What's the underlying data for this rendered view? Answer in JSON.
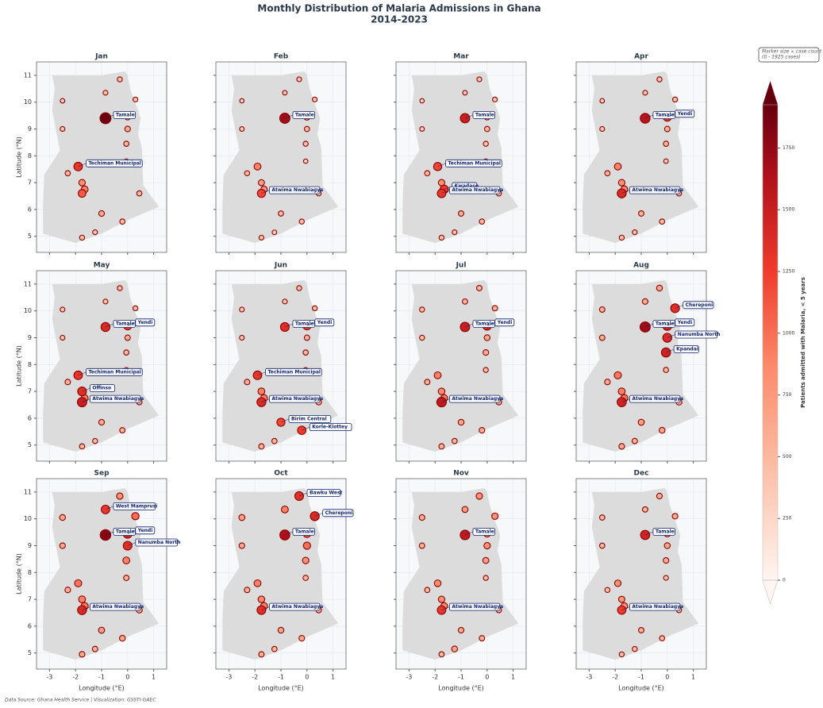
{
  "title": "Monthly Distribution of Malaria Admissions in Ghana",
  "subtitle": "2014-2023",
  "xlabel": "Longitude (°E)",
  "ylabel": "Latitude (°N)",
  "size_note": [
    "Marker size ∝ case count",
    "(0 - 1925 cases)"
  ],
  "source": "Data Source: Ghana Health Service | Visualization: GSSTI-GAEC",
  "colorbar": {
    "label": "Patients admitted with Malaria, < 5 years",
    "lim": [
      0,
      1925
    ],
    "ticks": [
      0,
      250,
      500,
      750,
      1000,
      1250,
      1500,
      1750
    ]
  },
  "chart_data": [
    {
      "type": "scatter",
      "title": "Jan",
      "xlim": [
        -3.5,
        1.5
      ],
      "ylim": [
        4.4,
        11.5
      ],
      "xticks": [
        -3,
        -2,
        -1,
        0,
        1
      ],
      "yticks": [
        5,
        6,
        7,
        8,
        9,
        10,
        11
      ],
      "x": [
        -0.85,
        0.0,
        -1.9,
        -1.75,
        -1.65,
        -1.75,
        -1.0,
        -0.2,
        0.3,
        0.0,
        -0.05,
        -0.85,
        -0.3,
        -2.5,
        -2.5,
        0.45,
        -1.75,
        -1.25,
        -2.3,
        -0.05
      ],
      "y": [
        9.4,
        9.45,
        7.6,
        6.6,
        6.75,
        7.0,
        5.85,
        5.55,
        10.1,
        9.0,
        8.45,
        10.35,
        10.85,
        10.05,
        9.0,
        6.6,
        4.95,
        5.15,
        7.35,
        7.8
      ],
      "values": [
        1900,
        700,
        1300,
        1100,
        900,
        800,
        600,
        500,
        400,
        600,
        500,
        400,
        450,
        350,
        400,
        500,
        450,
        400,
        500,
        350
      ],
      "annotations": [
        {
          "text": "Tamale",
          "x": -0.85,
          "y": 9.4
        },
        {
          "text": "Techiman Municipal",
          "x": -1.9,
          "y": 7.6
        }
      ]
    },
    {
      "type": "scatter",
      "title": "Feb",
      "xlim": [
        -3.5,
        1.5
      ],
      "ylim": [
        4.4,
        11.5
      ],
      "xticks": [
        -3,
        -2,
        -1,
        0,
        1
      ],
      "yticks": [
        5,
        6,
        7,
        8,
        9,
        10,
        11
      ],
      "x": [
        -0.85,
        0.0,
        -1.9,
        -1.75,
        -1.65,
        -1.75,
        -1.0,
        -0.2,
        0.3,
        0.0,
        -0.05,
        -0.85,
        -0.3,
        -2.5,
        -2.5,
        0.45,
        -1.75,
        -1.25,
        -2.3,
        -0.05
      ],
      "y": [
        9.4,
        9.45,
        7.6,
        6.6,
        6.75,
        7.0,
        5.85,
        5.55,
        10.1,
        9.0,
        8.45,
        10.35,
        10.85,
        10.05,
        9.0,
        6.6,
        4.95,
        5.15,
        7.35,
        7.8
      ],
      "values": [
        1700,
        800,
        900,
        1200,
        800,
        700,
        500,
        450,
        400,
        500,
        450,
        350,
        400,
        300,
        350,
        450,
        400,
        350,
        450,
        300
      ],
      "annotations": [
        {
          "text": "Tamale",
          "x": -0.85,
          "y": 9.4
        },
        {
          "text": "Atwima Nwabiagya",
          "x": -1.75,
          "y": 6.6
        }
      ]
    },
    {
      "type": "scatter",
      "title": "Mar",
      "xlim": [
        -3.5,
        1.5
      ],
      "ylim": [
        4.4,
        11.5
      ],
      "xticks": [
        -3,
        -2,
        -1,
        0,
        1
      ],
      "yticks": [
        5,
        6,
        7,
        8,
        9,
        10,
        11
      ],
      "x": [
        -0.85,
        0.0,
        -1.9,
        -1.75,
        -1.65,
        -1.75,
        -1.0,
        -0.2,
        0.3,
        0.0,
        -0.05,
        -0.85,
        -0.3,
        -2.5,
        -2.5,
        0.45,
        -1.75,
        -1.25,
        -2.3,
        -0.05
      ],
      "y": [
        9.4,
        9.45,
        7.6,
        6.6,
        6.75,
        7.0,
        5.85,
        5.55,
        10.1,
        9.0,
        8.45,
        10.35,
        10.85,
        10.05,
        9.0,
        6.6,
        4.95,
        5.15,
        7.35,
        7.8
      ],
      "values": [
        1500,
        700,
        1200,
        1300,
        1250,
        800,
        550,
        500,
        400,
        500,
        450,
        350,
        400,
        300,
        350,
        500,
        450,
        400,
        500,
        350
      ],
      "annotations": [
        {
          "text": "Tamale",
          "x": -0.85,
          "y": 9.4
        },
        {
          "text": "Techiman Municipal",
          "x": -1.9,
          "y": 7.6
        },
        {
          "text": "Kwadaso",
          "x": -1.65,
          "y": 6.75
        },
        {
          "text": "Atwima Nwabiagya",
          "x": -1.75,
          "y": 6.6
        }
      ]
    },
    {
      "type": "scatter",
      "title": "Apr",
      "xlim": [
        -3.5,
        1.5
      ],
      "ylim": [
        4.4,
        11.5
      ],
      "xticks": [
        -3,
        -2,
        -1,
        0,
        1
      ],
      "yticks": [
        5,
        6,
        7,
        8,
        9,
        10,
        11
      ],
      "x": [
        -0.85,
        0.0,
        -1.9,
        -1.75,
        -1.65,
        -1.75,
        -1.0,
        -0.2,
        0.3,
        0.0,
        -0.05,
        -0.85,
        -0.3,
        -2.5,
        -2.5,
        0.45,
        -1.75,
        -1.25,
        -2.3,
        -0.05
      ],
      "y": [
        9.4,
        9.45,
        7.6,
        6.6,
        6.75,
        7.0,
        5.85,
        5.55,
        10.1,
        9.0,
        8.45,
        10.35,
        10.85,
        10.05,
        9.0,
        6.6,
        4.95,
        5.15,
        7.35,
        7.8
      ],
      "values": [
        1600,
        1300,
        900,
        1400,
        900,
        800,
        550,
        500,
        450,
        550,
        500,
        400,
        450,
        350,
        400,
        500,
        450,
        400,
        500,
        350
      ],
      "annotations": [
        {
          "text": "Tamale",
          "x": -0.85,
          "y": 9.4
        },
        {
          "text": "Yendi",
          "x": 0.0,
          "y": 9.45
        },
        {
          "text": "Atwima Nwabiagya",
          "x": -1.75,
          "y": 6.6
        }
      ]
    },
    {
      "type": "scatter",
      "title": "May",
      "xlim": [
        -3.5,
        1.5
      ],
      "ylim": [
        4.4,
        11.5
      ],
      "xticks": [
        -3,
        -2,
        -1,
        0,
        1
      ],
      "yticks": [
        5,
        6,
        7,
        8,
        9,
        10,
        11
      ],
      "x": [
        -0.85,
        0.0,
        -1.9,
        -1.75,
        -1.65,
        -1.75,
        -1.0,
        -0.2,
        0.3,
        0.0,
        -0.05,
        -0.85,
        -0.3,
        -2.5,
        -2.5,
        0.45,
        -1.75,
        -1.25,
        -2.3,
        -0.05
      ],
      "y": [
        9.4,
        9.45,
        7.6,
        6.6,
        6.75,
        7.0,
        5.85,
        5.55,
        10.1,
        9.0,
        8.45,
        10.35,
        10.85,
        10.05,
        9.0,
        6.6,
        4.95,
        5.15,
        7.35,
        7.8
      ],
      "values": [
        1400,
        1250,
        1300,
        1500,
        900,
        1350,
        600,
        550,
        450,
        550,
        500,
        400,
        450,
        400,
        400,
        550,
        500,
        450,
        550,
        400
      ],
      "annotations": [
        {
          "text": "Tamale",
          "x": -0.85,
          "y": 9.4
        },
        {
          "text": "Yendi",
          "x": 0.0,
          "y": 9.45
        },
        {
          "text": "Techiman Municipal",
          "x": -1.9,
          "y": 7.6
        },
        {
          "text": "Offinso",
          "x": -1.75,
          "y": 7.0
        },
        {
          "text": "Atwima Nwabiagya",
          "x": -1.75,
          "y": 6.6
        }
      ]
    },
    {
      "type": "scatter",
      "title": "Jun",
      "xlim": [
        -3.5,
        1.5
      ],
      "ylim": [
        4.4,
        11.5
      ],
      "xticks": [
        -3,
        -2,
        -1,
        0,
        1
      ],
      "yticks": [
        5,
        6,
        7,
        8,
        9,
        10,
        11
      ],
      "x": [
        -0.85,
        0.0,
        -1.9,
        -1.75,
        -1.65,
        -1.75,
        -1.0,
        -0.2,
        0.3,
        0.0,
        -0.05,
        -0.85,
        -0.3,
        -2.5,
        -2.5,
        0.45,
        -1.75,
        -1.25,
        -2.3,
        -0.05
      ],
      "y": [
        9.4,
        9.45,
        7.6,
        6.6,
        6.75,
        7.0,
        5.85,
        5.55,
        10.1,
        9.0,
        8.45,
        10.35,
        10.85,
        10.05,
        9.0,
        6.6,
        4.95,
        5.15,
        7.35,
        7.8
      ],
      "values": [
        1350,
        1250,
        1300,
        1400,
        900,
        900,
        1200,
        1250,
        450,
        550,
        500,
        400,
        450,
        400,
        400,
        600,
        550,
        500,
        550,
        400
      ],
      "annotations": [
        {
          "text": "Tamale",
          "x": -0.85,
          "y": 9.4
        },
        {
          "text": "Yendi",
          "x": 0.0,
          "y": 9.45
        },
        {
          "text": "Techiman Municipal",
          "x": -1.9,
          "y": 7.6
        },
        {
          "text": "Atwima Nwabiagya",
          "x": -1.75,
          "y": 6.6
        },
        {
          "text": "Birim Central",
          "x": -1.0,
          "y": 5.85
        },
        {
          "text": "Korle-Klottey",
          "x": -0.2,
          "y": 5.55
        }
      ]
    },
    {
      "type": "scatter",
      "title": "Jul",
      "xlim": [
        -3.5,
        1.5
      ],
      "ylim": [
        4.4,
        11.5
      ],
      "xticks": [
        -3,
        -2,
        -1,
        0,
        1
      ],
      "yticks": [
        5,
        6,
        7,
        8,
        9,
        10,
        11
      ],
      "x": [
        -0.85,
        0.0,
        -1.9,
        -1.75,
        -1.65,
        -1.75,
        -1.0,
        -0.2,
        0.3,
        0.0,
        -0.05,
        -0.85,
        -0.3,
        -2.5,
        -2.5,
        0.45,
        -1.75,
        -1.25,
        -2.3,
        -0.05
      ],
      "y": [
        9.4,
        9.45,
        7.6,
        6.6,
        6.75,
        7.0,
        5.85,
        5.55,
        10.1,
        9.0,
        8.45,
        10.35,
        10.85,
        10.05,
        9.0,
        6.6,
        4.95,
        5.15,
        7.35,
        7.8
      ],
      "values": [
        1500,
        1400,
        900,
        1550,
        900,
        850,
        650,
        600,
        550,
        650,
        600,
        500,
        550,
        450,
        450,
        600,
        550,
        500,
        550,
        450
      ],
      "annotations": [
        {
          "text": "Tamale",
          "x": -0.85,
          "y": 9.4
        },
        {
          "text": "Yendi",
          "x": 0.0,
          "y": 9.45
        },
        {
          "text": "Atwima Nwabiagya",
          "x": -1.75,
          "y": 6.6
        }
      ]
    },
    {
      "type": "scatter",
      "title": "Aug",
      "xlim": [
        -3.5,
        1.5
      ],
      "ylim": [
        4.4,
        11.5
      ],
      "xticks": [
        -3,
        -2,
        -1,
        0,
        1
      ],
      "yticks": [
        5,
        6,
        7,
        8,
        9,
        10,
        11
      ],
      "x": [
        -0.85,
        0.0,
        -1.9,
        -1.75,
        -1.65,
        -1.75,
        -1.0,
        -0.2,
        0.3,
        0.0,
        -0.05,
        -0.85,
        -0.3,
        -2.5,
        -2.5,
        0.45,
        -1.75,
        -1.25,
        -2.3,
        -0.05
      ],
      "y": [
        9.4,
        9.45,
        7.6,
        6.6,
        6.75,
        7.0,
        5.85,
        5.55,
        10.1,
        9.0,
        8.45,
        10.35,
        10.85,
        10.05,
        9.0,
        6.6,
        4.95,
        5.15,
        7.35,
        7.8
      ],
      "values": [
        1700,
        1500,
        950,
        1450,
        950,
        900,
        700,
        650,
        1350,
        1400,
        1450,
        600,
        650,
        550,
        550,
        650,
        600,
        550,
        600,
        500
      ],
      "annotations": [
        {
          "text": "Chereponi",
          "x": 0.3,
          "y": 10.1
        },
        {
          "text": "Tamale",
          "x": -0.85,
          "y": 9.4
        },
        {
          "text": "Yendi",
          "x": 0.0,
          "y": 9.45
        },
        {
          "text": "Nanumba North",
          "x": 0.0,
          "y": 9.0
        },
        {
          "text": "Kpandai",
          "x": -0.05,
          "y": 8.45
        },
        {
          "text": "Atwima Nwabiagya",
          "x": -1.75,
          "y": 6.6
        }
      ]
    },
    {
      "type": "scatter",
      "title": "Sep",
      "xlim": [
        -3.5,
        1.5
      ],
      "ylim": [
        4.4,
        11.5
      ],
      "xticks": [
        -3,
        -2,
        -1,
        0,
        1
      ],
      "yticks": [
        5,
        6,
        7,
        8,
        9,
        10,
        11
      ],
      "x": [
        -0.85,
        0.0,
        -1.9,
        -1.75,
        -1.65,
        -1.75,
        -1.0,
        -0.2,
        0.3,
        0.0,
        -0.05,
        -0.85,
        -0.3,
        -2.5,
        -2.5,
        0.45,
        -1.75,
        -1.25,
        -2.3,
        -0.05
      ],
      "y": [
        9.4,
        9.45,
        7.6,
        6.6,
        6.75,
        7.0,
        5.85,
        5.55,
        10.1,
        9.0,
        8.45,
        10.35,
        10.85,
        10.05,
        9.0,
        6.6,
        4.95,
        5.15,
        7.35,
        7.8
      ],
      "values": [
        1800,
        1450,
        950,
        1400,
        950,
        900,
        700,
        650,
        1000,
        1350,
        900,
        1300,
        800,
        650,
        600,
        650,
        600,
        550,
        600,
        550
      ],
      "annotations": [
        {
          "text": "West Mamprusi",
          "x": -0.85,
          "y": 10.35
        },
        {
          "text": "Tamale",
          "x": -0.85,
          "y": 9.4
        },
        {
          "text": "Yendi",
          "x": 0.0,
          "y": 9.45
        },
        {
          "text": "Nanumba North",
          "x": 0.0,
          "y": 9.0
        },
        {
          "text": "Atwima Nwabiagya",
          "x": -1.75,
          "y": 6.6
        }
      ]
    },
    {
      "type": "scatter",
      "title": "Oct",
      "xlim": [
        -3.5,
        1.5
      ],
      "ylim": [
        4.4,
        11.5
      ],
      "xticks": [
        -3,
        -2,
        -1,
        0,
        1
      ],
      "yticks": [
        5,
        6,
        7,
        8,
        9,
        10,
        11
      ],
      "x": [
        -0.85,
        0.0,
        -1.9,
        -1.75,
        -1.65,
        -1.75,
        -1.0,
        -0.2,
        0.3,
        0.0,
        -0.05,
        -0.85,
        -0.3,
        -2.5,
        -2.5,
        0.45,
        -1.75,
        -1.25,
        -2.3,
        -0.05
      ],
      "y": [
        9.4,
        9.45,
        7.6,
        6.6,
        6.75,
        7.0,
        5.85,
        5.55,
        10.1,
        9.0,
        8.45,
        10.35,
        10.85,
        10.05,
        9.0,
        6.6,
        4.95,
        5.15,
        7.35,
        7.8
      ],
      "values": [
        1650,
        1100,
        900,
        1350,
        900,
        850,
        650,
        600,
        1400,
        1000,
        800,
        900,
        1350,
        700,
        600,
        600,
        550,
        500,
        550,
        500
      ],
      "annotations": [
        {
          "text": "Bawku West",
          "x": -0.3,
          "y": 10.85
        },
        {
          "text": "Chereponi",
          "x": 0.3,
          "y": 10.1
        },
        {
          "text": "Tamale",
          "x": -0.85,
          "y": 9.4
        },
        {
          "text": "Atwima Nwabiagya",
          "x": -1.75,
          "y": 6.6
        }
      ]
    },
    {
      "type": "scatter",
      "title": "Nov",
      "xlim": [
        -3.5,
        1.5
      ],
      "ylim": [
        4.4,
        11.5
      ],
      "xticks": [
        -3,
        -2,
        -1,
        0,
        1
      ],
      "yticks": [
        5,
        6,
        7,
        8,
        9,
        10,
        11
      ],
      "x": [
        -0.85,
        0.0,
        -1.9,
        -1.75,
        -1.65,
        -1.75,
        -1.0,
        -0.2,
        0.3,
        0.0,
        -0.05,
        -0.85,
        -0.3,
        -2.5,
        -2.5,
        0.45,
        -1.75,
        -1.25,
        -2.3,
        -0.05
      ],
      "y": [
        9.4,
        9.45,
        7.6,
        6.6,
        6.75,
        7.0,
        5.85,
        5.55,
        10.1,
        9.0,
        8.45,
        10.35,
        10.85,
        10.05,
        9.0,
        6.6,
        4.95,
        5.15,
        7.35,
        7.8
      ],
      "values": [
        1550,
        900,
        850,
        1300,
        850,
        800,
        600,
        550,
        800,
        800,
        700,
        700,
        800,
        600,
        550,
        550,
        500,
        650,
        500,
        450
      ],
      "annotations": [
        {
          "text": "Tamale",
          "x": -0.85,
          "y": 9.4
        },
        {
          "text": "Atwima Nwabiagya",
          "x": -1.75,
          "y": 6.6
        }
      ]
    },
    {
      "type": "scatter",
      "title": "Dec",
      "xlim": [
        -3.5,
        1.5
      ],
      "ylim": [
        4.4,
        11.5
      ],
      "xticks": [
        -3,
        -2,
        -1,
        0,
        1
      ],
      "yticks": [
        5,
        6,
        7,
        8,
        9,
        10,
        11
      ],
      "x": [
        -0.85,
        0.0,
        -1.9,
        -1.75,
        -1.65,
        -1.75,
        -1.0,
        -0.2,
        0.3,
        0.0,
        -0.05,
        -0.85,
        -0.3,
        -2.5,
        -2.5,
        0.45,
        -1.75,
        -1.25,
        -2.3,
        -0.05
      ],
      "y": [
        9.4,
        9.45,
        7.6,
        6.6,
        6.75,
        7.0,
        5.85,
        5.55,
        10.1,
        9.0,
        8.45,
        10.35,
        10.85,
        10.05,
        9.0,
        6.6,
        4.95,
        5.15,
        7.35,
        7.8
      ],
      "values": [
        1450,
        800,
        800,
        1250,
        800,
        750,
        550,
        500,
        600,
        650,
        600,
        550,
        600,
        500,
        500,
        500,
        450,
        450,
        450,
        400
      ],
      "annotations": [
        {
          "text": "Tamale",
          "x": -0.85,
          "y": 9.4
        },
        {
          "text": "Atwima Nwabiagya",
          "x": -1.75,
          "y": 6.6
        }
      ]
    }
  ]
}
